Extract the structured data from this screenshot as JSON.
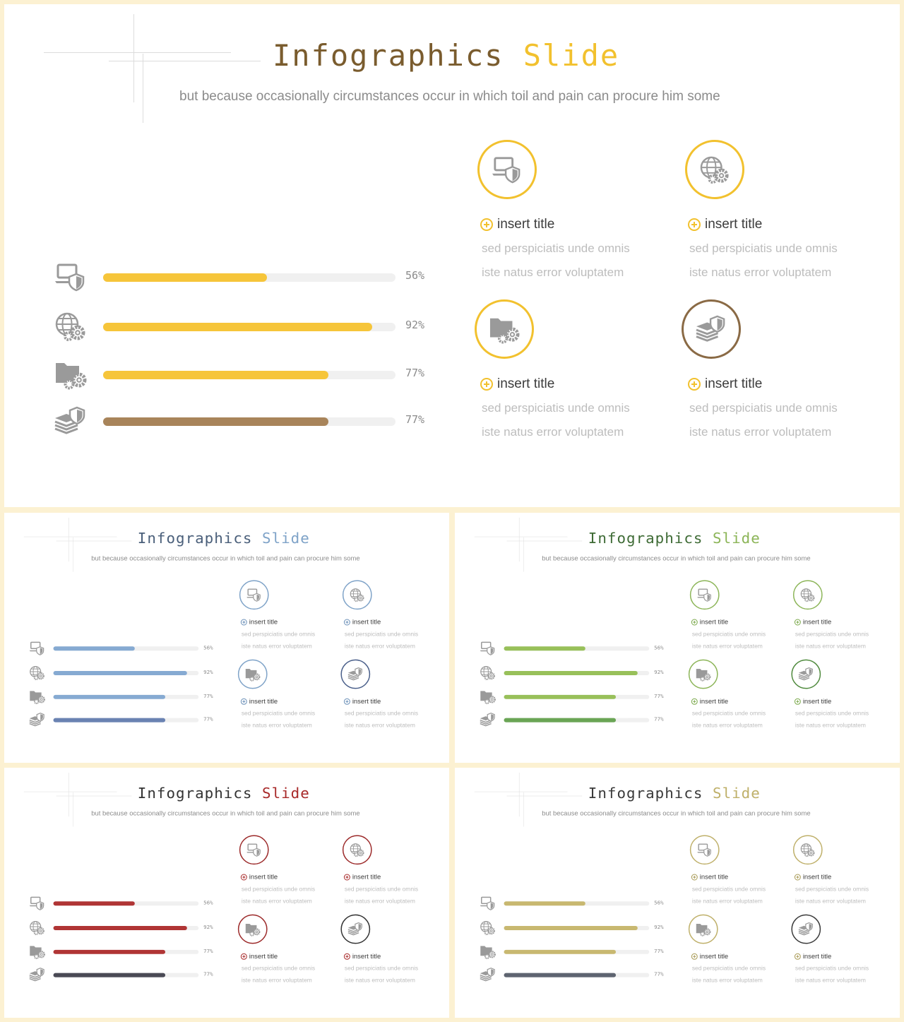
{
  "title_part1": "Infographics",
  "title_part2": "Slide",
  "subtitle": "but because occasionally circumstances occur in which toil and pain can procure him some",
  "bars": [
    {
      "icon": "laptop-shield-icon",
      "value": 56,
      "label": "56%"
    },
    {
      "icon": "globe-gears-icon",
      "value": 92,
      "label": "92%"
    },
    {
      "icon": "folder-gears-icon",
      "value": 77,
      "label": "77%"
    },
    {
      "icon": "stack-shield-icon",
      "value": 77,
      "label": "77%"
    }
  ],
  "cards": [
    {
      "icon": "laptop-shield-icon",
      "title": "insert title",
      "line1": "sed perspiciatis unde omnis",
      "line2": "iste natus error voluptatem"
    },
    {
      "icon": "globe-gears-icon",
      "title": "insert title",
      "line1": "sed perspiciatis unde omnis",
      "line2": "iste natus error voluptatem"
    },
    {
      "icon": "folder-gears-icon",
      "title": "insert title",
      "line1": "sed perspiciatis unde omnis",
      "line2": "iste natus error voluptatem"
    },
    {
      "icon": "stack-shield-icon",
      "title": "insert title",
      "line1": "sed perspiciatis unde omnis",
      "line2": "iste natus error voluptatem"
    }
  ],
  "themes": [
    {
      "name": "yellow",
      "title1": "#7a5c2e",
      "title2": "#f2c12e",
      "bar": "#f6c53a",
      "bar_last": "#a8845a",
      "circle": "#f2c12e",
      "circle_last": "#8a6a45",
      "plus": "#f2c12e"
    },
    {
      "name": "blue",
      "title1": "#4a5f7a",
      "title2": "#7fa3c8",
      "bar": "#86aad2",
      "bar_last": "#6a82b2",
      "circle": "#7fa3c8",
      "circle_last": "#4a5f8a",
      "plus": "#6b90b8"
    },
    {
      "name": "green",
      "title1": "#3e6b35",
      "title2": "#8cb558",
      "bar": "#98c05a",
      "bar_last": "#6aa555",
      "circle": "#8cb558",
      "circle_last": "#4f8a3d",
      "plus": "#7aa84a"
    },
    {
      "name": "red",
      "title1": "#333333",
      "title2": "#a82a2a",
      "bar": "#b03535",
      "bar_last": "#4a4a55",
      "circle": "#9c2a2a",
      "circle_last": "#333333",
      "plus": "#a82a2a"
    },
    {
      "name": "olive",
      "title1": "#3a3a3a",
      "title2": "#bfb06a",
      "bar": "#c8b870",
      "bar_last": "#5e6470",
      "circle": "#bfb06a",
      "circle_last": "#3a3a3a",
      "plus": "#a89a55"
    }
  ]
}
